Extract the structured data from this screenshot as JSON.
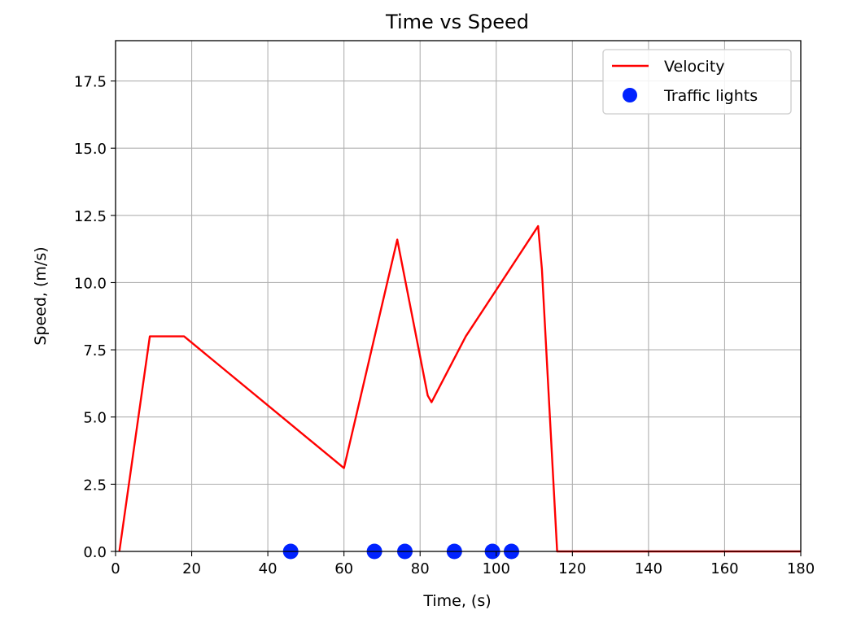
{
  "chart_data": {
    "type": "line",
    "title": "Time vs Speed",
    "xlabel": "Time, (s)",
    "ylabel": "Speed, (m/s)",
    "xlim": [
      0,
      180
    ],
    "ylim": [
      0,
      19
    ],
    "grid": true,
    "legend_position": "top-right",
    "x_ticks": [
      0,
      20,
      40,
      60,
      80,
      100,
      120,
      140,
      160,
      180
    ],
    "x_tick_labels": [
      "0",
      "20",
      "40",
      "60",
      "80",
      "100",
      "120",
      "140",
      "160",
      "180"
    ],
    "y_ticks": [
      0,
      2.5,
      5,
      7.5,
      10,
      12.5,
      15,
      17.5
    ],
    "y_tick_labels": [
      "0.0",
      "2.5",
      "5.0",
      "7.5",
      "10.0",
      "12.5",
      "15.0",
      "17.5"
    ],
    "series": [
      {
        "name": "Velocity",
        "type": "line",
        "color": "#ff0000",
        "x": [
          1,
          9,
          18,
          60,
          74,
          82,
          83,
          92,
          111,
          112,
          116,
          180
        ],
        "y": [
          0,
          8,
          8,
          3.1,
          11.6,
          5.8,
          5.55,
          8,
          12.1,
          10.5,
          0,
          0
        ]
      },
      {
        "name": "Traffic lights",
        "type": "scatter",
        "color": "#0022ff",
        "x": [
          46,
          68,
          76,
          89,
          99,
          104
        ],
        "y": [
          0,
          0,
          0,
          0,
          0,
          0
        ]
      }
    ]
  }
}
